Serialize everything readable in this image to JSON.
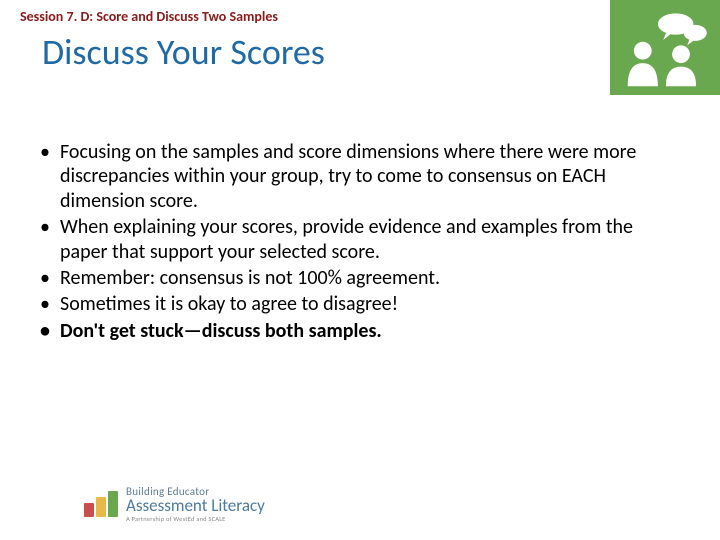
{
  "header": {
    "session": "Session 7. D: Score and Discuss Two Samples",
    "session_color": "#8b1a1a",
    "title": "Discuss Your Scores",
    "title_color": "#1f6aa5"
  },
  "icon": {
    "name": "discussion-icon",
    "background": "#6aa84f"
  },
  "bullets": [
    {
      "text": "Focusing on the samples and score dimensions where there were more discrepancies within your group, try to come to consensus on EACH dimension score.",
      "bold": false
    },
    {
      "text": "When explaining your scores, provide evidence and examples from the paper that support your selected score.",
      "bold": false
    },
    {
      "text": "Remember: consensus is not 100% agreement.",
      "bold": false
    },
    {
      "text": "Sometimes it is okay to agree to disagree!",
      "bold": false
    },
    {
      "text": "Don't get stuck—discuss both samples.",
      "bold": true
    }
  ],
  "logo": {
    "bars": [
      {
        "color": "#c94f4f",
        "height": 14
      },
      {
        "color": "#e8b84a",
        "height": 20
      },
      {
        "color": "#6aa84f",
        "height": 26
      }
    ],
    "line1": "Building Educator",
    "line2": "Assessment Literacy",
    "line3": "A Partnership of WestEd and SCALE"
  }
}
